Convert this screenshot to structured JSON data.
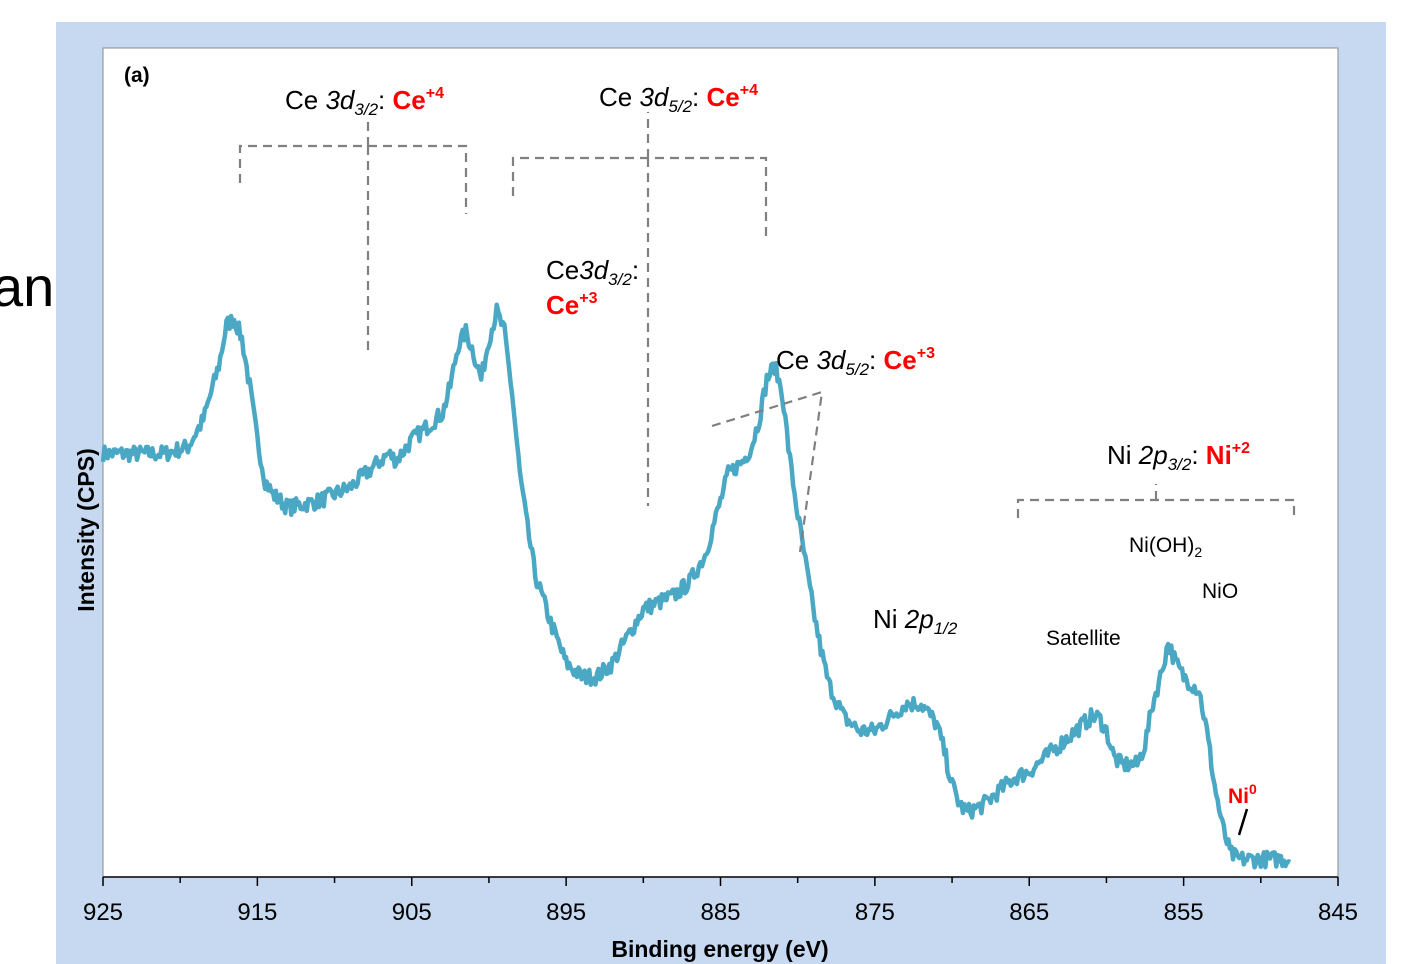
{
  "background_text": "an",
  "chart_data": {
    "type": "line",
    "panel_label": "(a)",
    "title": "",
    "xlabel": "Binding energy (eV)",
    "ylabel": "Intensity (CPS)",
    "x_reversed": true,
    "xlim": [
      925,
      845
    ],
    "ylim": [
      0,
      100
    ],
    "x_ticks": [
      925,
      915,
      905,
      895,
      885,
      875,
      865,
      855,
      845
    ],
    "y_ticks_shown": false,
    "grid": false,
    "legend": "none",
    "series": [
      {
        "color": "#4aa8c4",
        "x": [
          925,
          923,
          921,
          919.5,
          918.5,
          917.5,
          917,
          916.5,
          916,
          915.5,
          915,
          914.5,
          914,
          913,
          911,
          909,
          907.5,
          906.5,
          906,
          905,
          904,
          903,
          902.5,
          902,
          901.5,
          901,
          900.5,
          900,
          899.5,
          899,
          898.5,
          898,
          897.5,
          897,
          896,
          895,
          894,
          893,
          892,
          891,
          890,
          889,
          888,
          887,
          886,
          885,
          884.5,
          884,
          883.5,
          883,
          882.5,
          882,
          881.5,
          881,
          880.5,
          880,
          879.5,
          879,
          878.5,
          878,
          877,
          876,
          875,
          874,
          873,
          872,
          871,
          870.5,
          870,
          869.5,
          869,
          868,
          867,
          866,
          865,
          864,
          863,
          862,
          861,
          860.5,
          860,
          859.5,
          859,
          858,
          857.5,
          857,
          856.5,
          856,
          855.5,
          855,
          854.5,
          854,
          853.5,
          853,
          852.5,
          852,
          851.5,
          851,
          850,
          849,
          848
        ],
        "y": [
          61,
          61,
          61,
          62,
          66,
          74,
          80,
          81,
          78,
          71,
          63,
          57,
          55,
          53,
          54,
          56,
          59,
          61,
          60,
          63,
          65,
          67,
          71,
          77,
          79,
          76,
          72,
          78,
          82,
          79,
          70,
          58,
          50,
          43,
          36,
          30,
          28,
          28,
          30,
          34,
          38,
          39,
          40,
          42,
          46,
          54,
          58,
          59,
          60,
          62,
          66,
          72,
          74,
          70,
          60,
          52,
          45,
          38,
          32,
          27,
          22,
          20,
          20,
          22,
          24,
          24,
          21,
          17,
          12,
          9,
          8,
          9,
          11,
          13,
          14,
          16,
          18,
          20,
          22,
          22,
          20,
          16,
          15,
          15,
          18,
          24,
          28,
          33,
          30,
          28,
          27,
          26,
          20,
          12,
          6,
          2,
          1,
          1,
          1,
          1,
          1
        ]
      }
    ],
    "annotations": {
      "ce3d32_ce4": {
        "prefix": "Ce ",
        "orbital": "3d",
        "sub": "3/2",
        "sep": ": ",
        "state": "Ce",
        "sup": "+4",
        "peaks_eV": [
          916.5,
          901.5
        ]
      },
      "ce3d52_ce4": {
        "prefix": "Ce ",
        "orbital": "3d",
        "sub": "5/2",
        "sep": ": ",
        "state": "Ce",
        "sup": "+4",
        "peaks_eV": [
          898.5,
          882.5
        ]
      },
      "ce3d32_ce3": {
        "prefix": "Ce",
        "orbital": "3d",
        "sub": "3/2",
        "sep": ":",
        "state": "Ce",
        "sup": "+3"
      },
      "ce3d52_ce3": {
        "prefix": "Ce ",
        "orbital": "3d",
        "sub": "5/2",
        "sep": ": ",
        "state": "Ce",
        "sup": "+3"
      },
      "ni2p12": {
        "prefix": "Ni ",
        "orbital": "2p",
        "sub": "1/2"
      },
      "ni2p32": {
        "prefix": "Ni ",
        "orbital": "2p",
        "sub": "3/2",
        "sep": ": ",
        "state": "Ni",
        "sup": "+2"
      },
      "nioh2": {
        "text": "Ni(OH)",
        "sub": "2"
      },
      "nio": {
        "text": "NiO"
      },
      "satellite": {
        "text": "Satellite"
      },
      "ni0": {
        "state": "Ni",
        "sup": "0"
      }
    },
    "colors": {
      "frame": "#c6d9f1",
      "plot_bg": "#ffffff",
      "series": "#4aa8c4",
      "bracket": "#808080",
      "oxidation_state": "#ff0000"
    }
  }
}
